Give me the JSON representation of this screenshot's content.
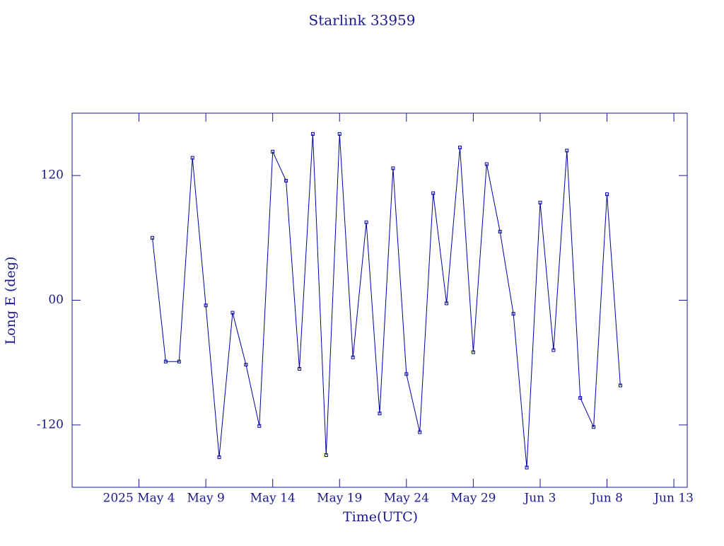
{
  "chart_data": {
    "type": "line",
    "title": "Starlink 33959",
    "xlabel": "Time(UTC)",
    "ylabel": "Long E (deg)",
    "color": "#0000a0",
    "x": [
      "2025-05-05",
      "2025-05-06",
      "2025-05-07",
      "2025-05-08",
      "2025-05-09",
      "2025-05-10",
      "2025-05-11",
      "2025-05-12",
      "2025-05-13",
      "2025-05-14",
      "2025-05-15",
      "2025-05-16",
      "2025-05-17",
      "2025-05-18",
      "2025-05-19",
      "2025-05-20",
      "2025-05-21",
      "2025-05-22",
      "2025-05-23",
      "2025-05-24",
      "2025-05-25",
      "2025-05-26",
      "2025-05-27",
      "2025-05-28",
      "2025-05-29",
      "2025-05-30",
      "2025-05-31",
      "2025-06-01",
      "2025-06-02",
      "2025-06-03",
      "2025-06-04",
      "2025-06-05",
      "2025-06-06",
      "2025-06-07",
      "2025-06-08",
      "2025-06-09"
    ],
    "series": [
      {
        "name": "Long E",
        "color": "#0000a0",
        "values": [
          60,
          -59,
          -59,
          137,
          -5,
          -151,
          -12,
          -62,
          -121,
          143,
          115,
          -66,
          160,
          -149,
          160,
          -55,
          75,
          -109,
          127,
          -71,
          -127,
          103,
          -3,
          147,
          -50,
          131,
          66,
          -13,
          -161,
          94,
          -48,
          144,
          -94,
          -122,
          102,
          -82
        ]
      }
    ],
    "xlim": [
      "2025-04-29",
      "2025-06-14"
    ],
    "xticks": [
      {
        "value": "2025-05-04",
        "label": "2025 May 4"
      },
      {
        "value": "2025-05-09",
        "label": "May 9"
      },
      {
        "value": "2025-05-14",
        "label": "May 14"
      },
      {
        "value": "2025-05-19",
        "label": "May 19"
      },
      {
        "value": "2025-05-24",
        "label": "May 24"
      },
      {
        "value": "2025-05-29",
        "label": "May 29"
      },
      {
        "value": "2025-06-03",
        "label": "Jun 3"
      },
      {
        "value": "2025-06-08",
        "label": "Jun 8"
      },
      {
        "value": "2025-06-13",
        "label": "Jun 13"
      }
    ],
    "ylim": [
      -180,
      180
    ],
    "yticks": [
      -120,
      {
        "value": 0,
        "label": "00"
      },
      120
    ]
  }
}
